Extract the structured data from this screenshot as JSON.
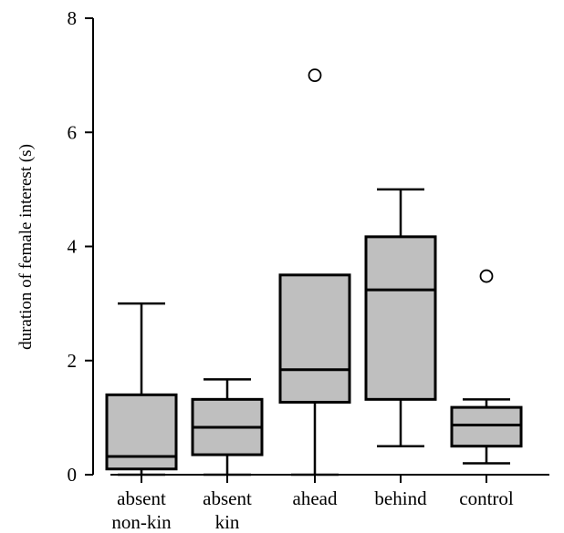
{
  "chart_data": {
    "type": "box",
    "title": "",
    "xlabel": "",
    "ylabel": "duration of female interest (s)",
    "ylim": [
      0,
      8
    ],
    "yticks": [
      "0",
      "2",
      "4",
      "6",
      "8"
    ],
    "ytick_values": [
      0,
      2,
      4,
      6,
      8
    ],
    "grid": false,
    "categories": [
      [
        "absent",
        "non-kin"
      ],
      [
        "absent",
        "kin"
      ],
      [
        "ahead"
      ],
      [
        "behind"
      ],
      [
        "control"
      ]
    ],
    "boxes": [
      {
        "min": 0.0,
        "q1": 0.1,
        "median": 0.32,
        "q3": 1.4,
        "max": 3.0,
        "outliers": []
      },
      {
        "min": 0.0,
        "q1": 0.35,
        "median": 0.83,
        "q3": 1.32,
        "max": 1.67,
        "outliers": []
      },
      {
        "min": 0.0,
        "q1": 1.27,
        "median": 1.84,
        "q3": 3.5,
        "max": 3.5,
        "outliers": [
          7.0
        ]
      },
      {
        "min": 0.5,
        "q1": 1.32,
        "median": 3.24,
        "q3": 4.17,
        "max": 5.0,
        "outliers": []
      },
      {
        "min": 0.2,
        "q1": 0.5,
        "median": 0.87,
        "q3": 1.18,
        "max": 1.32,
        "outliers": [
          3.48
        ]
      }
    ],
    "colors": {
      "box_fill": "#bfbfbf",
      "stroke": "#000000",
      "outlier_fill": "#ffffff"
    }
  }
}
